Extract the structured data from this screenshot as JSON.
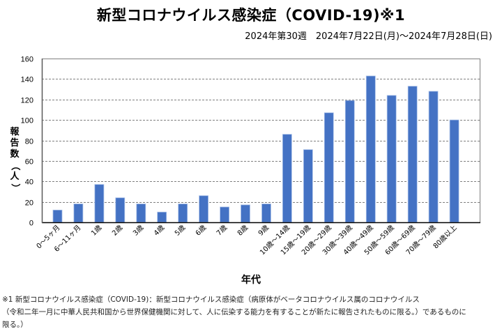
{
  "header": {
    "title": "新型コロナウイルス感染症（COVID-19)※1",
    "subtitle": "2024年第30週　2024年7月22日(月)～2024年7月28日(日)"
  },
  "chart_data": {
    "type": "bar",
    "title": "新型コロナウイルス感染症（COVID-19)※1",
    "subtitle": "2024年第30週　2024年7月22日(月)～2024年7月28日(日)",
    "xlabel": "年代",
    "ylabel_chars": [
      "報",
      "告",
      "数",
      "（",
      "人",
      "）"
    ],
    "ylabel": "報告数（人）",
    "ylim": [
      0,
      160
    ],
    "yticks": [
      0,
      20,
      40,
      60,
      80,
      100,
      120,
      140,
      160
    ],
    "grid": true,
    "legend": "none",
    "bar_color": "#4472C4",
    "categories": [
      "0～5ヶ月",
      "6～11ヶ月",
      "1歳",
      "2歳",
      "3歳",
      "4歳",
      "5歳",
      "6歳",
      "7歳",
      "8歳",
      "9歳",
      "10歳～14歳",
      "15歳～19歳",
      "20歳～29歳",
      "30歳～39歳",
      "40歳～49歳",
      "50歳～59歳",
      "60歳～69歳",
      "70歳～79歳",
      "80歳以上"
    ],
    "values": [
      12,
      18,
      37,
      24,
      18,
      10,
      18,
      26,
      15,
      17,
      18,
      86,
      71,
      107,
      119,
      143,
      124,
      133,
      128,
      100
    ]
  },
  "footnote": {
    "line1": "※1 新型コロナウイルス感染症（COVID-19)：新型コロナウイルス感染症（病原体がベータコロナウイルス属のコロナウイルス",
    "line2": "（令和二年一月に中華人民共和国から世界保健機関に対して、人に伝染する能力を有することが新たに報告されたものに限る。）であるものに",
    "line3": "限る。）"
  }
}
